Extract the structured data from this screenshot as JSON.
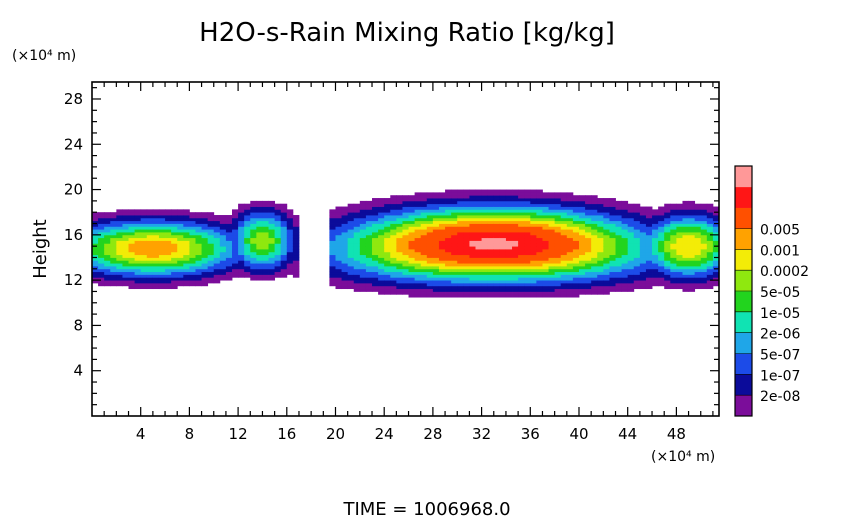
{
  "chart_data": {
    "type": "heatmap",
    "title": "H2O-s-Rain Mixing Ratio [kg/kg]",
    "ylabel": "Height",
    "y_unit": "(×10⁴ m)",
    "x_unit": "(×10⁴ m)",
    "xlim": [
      0,
      51.5
    ],
    "ylim": [
      0,
      29.5
    ],
    "x_ticks": [
      "4",
      "8",
      "12",
      "16",
      "20",
      "24",
      "28",
      "32",
      "36",
      "40",
      "44",
      "48"
    ],
    "y_ticks": [
      "4",
      "8",
      "12",
      "16",
      "20",
      "24",
      "28"
    ],
    "footer": "TIME  =  1006968.0",
    "colorbar": {
      "levels": [
        "0.005",
        "0.001",
        "0.0002",
        "5e-05",
        "1e-05",
        "2e-06",
        "5e-07",
        "1e-07",
        "2e-08"
      ],
      "colors": [
        "#7b0d9a",
        "#0b0b9a",
        "#1c4be8",
        "#1fa6e8",
        "#10e3b3",
        "#22d41e",
        "#8fe80f",
        "#f3ec07",
        "#ffa200",
        "#ff5000",
        "#ff1616",
        "#ff9898"
      ]
    },
    "regions": [
      {
        "x_range": [
          0,
          17
        ],
        "y_range": [
          12.5,
          19.5
        ],
        "peak_level": "0.0002",
        "peak_center": [
          5,
          13.5
        ]
      },
      {
        "x_range": [
          18,
          51.5
        ],
        "y_range": [
          10.5,
          19.8
        ],
        "peak_level": "0.001",
        "peak_center": [
          32,
          13.5
        ]
      }
    ]
  }
}
